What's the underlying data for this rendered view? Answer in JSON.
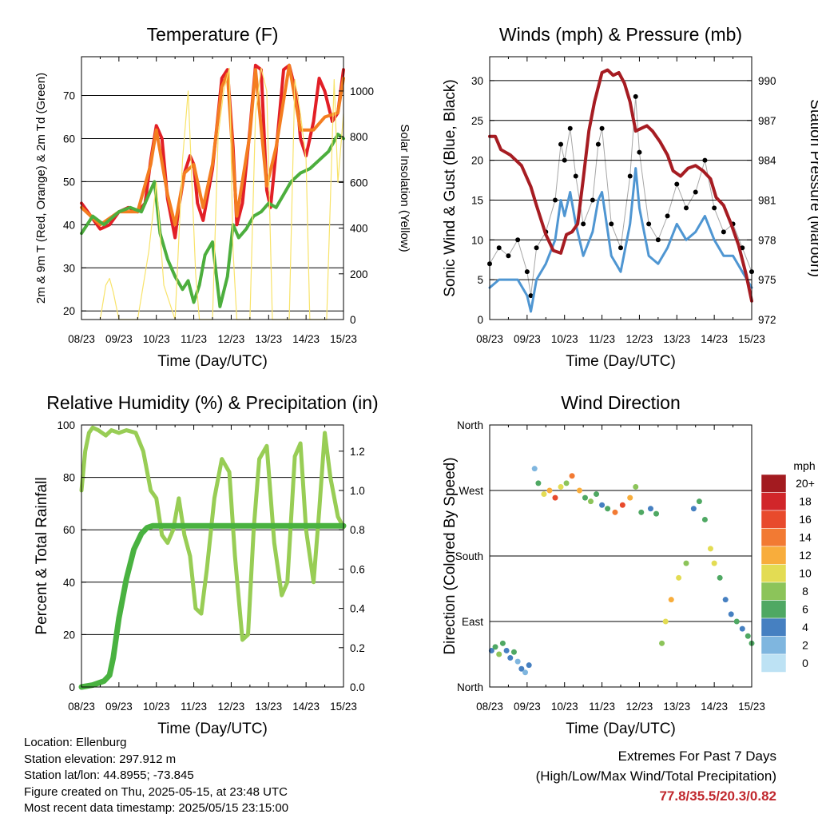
{
  "info": {
    "location": "Location: Ellenburg",
    "elevation": "Station elevation: 297.912 m",
    "latlon": "Station lat/lon: 44.8955; -73.845",
    "created": "Figure created on Thu, 2025-05-15, at 23:48 UTC",
    "recent": "Most recent data timestamp: 2025/05/15 23:15:00"
  },
  "extremes": {
    "title": "Extremes For Past 7 Days",
    "subtitle": "(High/Low/Max Wind/Total Precipitation)",
    "values": "77.8/35.5/20.3/0.82"
  },
  "colors": {
    "temp2m": "#e21f26",
    "temp9m": "#f47d20",
    "dewpoint": "#4cae3d",
    "solar": "#f8e36a",
    "gust": "#000000",
    "wind": "#4f96d2",
    "pressure": "#a61c22",
    "rh": "#98cd55",
    "precip": "#49b240"
  },
  "chart_data": [
    {
      "type": "line",
      "title": "Temperature (F)",
      "xlabel": "Time (Day/UTC)",
      "ylabel": "2m & 9m T (Red, Orange) & 2m Td (Green)",
      "ylabel_right": "Solar Insolation (Yellow)",
      "x_ticks": [
        "08/23",
        "09/23",
        "10/23",
        "11/23",
        "12/23",
        "13/23",
        "14/23",
        "15/23"
      ],
      "xlim": [
        0,
        7
      ],
      "ylim": [
        18,
        79
      ],
      "y_ticks": [
        20,
        30,
        40,
        50,
        60,
        70
      ],
      "ylim_right": [
        0,
        1150
      ],
      "y_ticks_right": [
        0,
        200,
        400,
        600,
        800,
        1000
      ],
      "grid": "horizontal",
      "series": [
        {
          "name": "2m T",
          "color": "#e21f26",
          "axis": "left",
          "x": [
            0,
            0.25,
            0.5,
            0.75,
            1,
            1.25,
            1.5,
            1.7,
            1.85,
            2.0,
            2.15,
            2.3,
            2.5,
            2.6,
            2.75,
            2.9,
            3.0,
            3.1,
            3.25,
            3.5,
            3.75,
            3.9,
            4.05,
            4.15,
            4.3,
            4.5,
            4.65,
            4.8,
            4.95,
            5.05,
            5.2,
            5.4,
            5.55,
            5.75,
            5.85,
            6.0,
            6.2,
            6.35,
            6.5,
            6.7,
            6.85,
            7.0
          ],
          "values": [
            45,
            42,
            39,
            40,
            43,
            44,
            43,
            45,
            55,
            63,
            60,
            46,
            37,
            44,
            52,
            56,
            54,
            45,
            41,
            53,
            74,
            76,
            58,
            40,
            45,
            62,
            77,
            76,
            48,
            44,
            57,
            76,
            77,
            70,
            60,
            56,
            64,
            74,
            71,
            64,
            66,
            76
          ]
        },
        {
          "name": "9m T",
          "color": "#f47d20",
          "axis": "left",
          "x": [
            0,
            0.5,
            1,
            1.5,
            1.85,
            2.0,
            2.3,
            2.5,
            2.75,
            3.0,
            3.25,
            3.5,
            3.75,
            3.9,
            4.15,
            4.5,
            4.65,
            4.95,
            5.2,
            5.55,
            5.85,
            6.2,
            6.5,
            6.85,
            7.0
          ],
          "values": [
            44,
            40,
            43,
            43,
            54,
            62,
            47,
            40,
            52,
            54,
            44,
            54,
            72,
            75,
            42,
            61,
            76,
            49,
            58,
            77,
            62,
            62,
            65,
            66,
            74
          ]
        },
        {
          "name": "2m Td",
          "color": "#4cae3d",
          "axis": "left",
          "x": [
            0,
            0.3,
            0.6,
            1,
            1.3,
            1.6,
            1.8,
            1.95,
            2.1,
            2.3,
            2.5,
            2.7,
            2.85,
            3.0,
            3.15,
            3.3,
            3.5,
            3.7,
            3.9,
            4.05,
            4.2,
            4.4,
            4.6,
            4.8,
            5.0,
            5.2,
            5.4,
            5.6,
            5.85,
            6.1,
            6.35,
            6.6,
            6.85,
            7.0
          ],
          "values": [
            38,
            42,
            40,
            43,
            44,
            43,
            47,
            50,
            38,
            32,
            28,
            25,
            27,
            22,
            26,
            33,
            36,
            21,
            28,
            40,
            37,
            39,
            42,
            43,
            45,
            44,
            47,
            50,
            52,
            53,
            55,
            57,
            61,
            60
          ]
        },
        {
          "name": "Solar Insolation",
          "color": "#f8e36a",
          "axis": "right",
          "x": [
            0.5,
            0.65,
            0.75,
            0.85,
            1.0,
            1.5,
            1.8,
            2.0,
            2.2,
            2.5,
            2.7,
            2.85,
            3.05,
            3.15,
            3.5,
            3.65,
            3.8,
            3.95,
            4.05,
            4.15,
            4.5,
            4.65,
            4.8,
            4.95,
            5.1,
            5.55,
            5.7,
            5.85,
            6.0,
            6.1,
            6.55,
            6.75,
            6.85,
            7.0
          ],
          "values": [
            0,
            150,
            180,
            120,
            0,
            0,
            300,
            600,
            150,
            0,
            700,
            1000,
            200,
            0,
            0,
            800,
            1000,
            1100,
            300,
            0,
            0,
            900,
            1100,
            1000,
            0,
            0,
            1050,
            900,
            700,
            0,
            0,
            1050,
            600,
            900
          ]
        }
      ]
    },
    {
      "type": "line",
      "title": "Winds (mph) & Pressure (mb)",
      "xlabel": "Time (Day/UTC)",
      "ylabel": "Sonic Wind & Gust (Blue, Black)",
      "ylabel_right": "Station Pressure (Maroon)",
      "x_ticks": [
        "08/23",
        "09/23",
        "10/23",
        "11/23",
        "12/23",
        "13/23",
        "14/23",
        "15/23"
      ],
      "xlim": [
        0,
        7
      ],
      "ylim": [
        0,
        33
      ],
      "y_ticks": [
        0,
        5,
        10,
        15,
        20,
        25,
        30
      ],
      "ylim_right": [
        972,
        991.8
      ],
      "y_ticks_right": [
        972,
        975,
        978,
        981,
        984,
        987,
        990
      ],
      "grid": "horizontal",
      "series": [
        {
          "name": "Gust",
          "color": "#000000",
          "axis": "left",
          "style": "points",
          "x": [
            0,
            0.25,
            0.5,
            0.75,
            1.0,
            1.1,
            1.25,
            1.5,
            1.75,
            1.9,
            2.0,
            2.15,
            2.3,
            2.5,
            2.75,
            2.9,
            3.0,
            3.25,
            3.5,
            3.75,
            3.9,
            4.0,
            4.25,
            4.5,
            4.75,
            5.0,
            5.25,
            5.5,
            5.75,
            6.0,
            6.25,
            6.5,
            6.75,
            7.0
          ],
          "values": [
            7,
            9,
            8,
            10,
            6,
            3,
            9,
            11,
            15,
            22,
            20,
            24,
            18,
            12,
            15,
            22,
            24,
            12,
            9,
            18,
            28,
            21,
            12,
            10,
            13,
            17,
            14,
            16,
            20,
            14,
            11,
            12,
            9,
            6
          ]
        },
        {
          "name": "Sonic Wind",
          "color": "#4f96d2",
          "axis": "left",
          "style": "line",
          "x": [
            0,
            0.25,
            0.5,
            0.75,
            1.0,
            1.1,
            1.25,
            1.5,
            1.75,
            1.9,
            2.0,
            2.15,
            2.3,
            2.5,
            2.75,
            2.9,
            3.0,
            3.25,
            3.5,
            3.75,
            3.9,
            4.0,
            4.25,
            4.5,
            4.75,
            5.0,
            5.25,
            5.5,
            5.75,
            6.0,
            6.25,
            6.5,
            6.75,
            7.0
          ],
          "values": [
            4,
            5,
            5,
            5,
            3,
            1,
            5,
            7,
            10,
            15,
            13,
            16,
            12,
            8,
            11,
            15,
            16,
            8,
            6,
            12,
            19,
            14,
            8,
            7,
            9,
            12,
            10,
            11,
            13,
            10,
            8,
            8,
            6,
            4
          ]
        },
        {
          "name": "Station Pressure",
          "color": "#a61c22",
          "axis": "right",
          "style": "line",
          "x": [
            0,
            0.15,
            0.3,
            0.55,
            0.85,
            1.1,
            1.25,
            1.5,
            1.7,
            1.9,
            2.05,
            2.2,
            2.35,
            2.5,
            2.65,
            2.8,
            3.0,
            3.15,
            3.3,
            3.45,
            3.6,
            3.75,
            3.9,
            4.05,
            4.2,
            4.35,
            4.55,
            4.75,
            4.9,
            5.1,
            5.3,
            5.5,
            5.7,
            5.9,
            6.05,
            6.25,
            6.45,
            6.65,
            6.85,
            7.0
          ],
          "values": [
            985.8,
            985.8,
            984.8,
            984.4,
            983.6,
            982.0,
            980.6,
            978.4,
            977.2,
            977.0,
            978.4,
            978.6,
            979.2,
            982.6,
            986.2,
            988.4,
            990.6,
            990.8,
            990.4,
            990.6,
            989.8,
            988.4,
            986.2,
            986.4,
            986.6,
            986.2,
            985.4,
            984.4,
            983.2,
            982.8,
            983.4,
            983.6,
            983.2,
            982.6,
            981.2,
            980.6,
            979.2,
            977.6,
            975.4,
            973.4
          ]
        }
      ]
    },
    {
      "type": "line",
      "title": "Relative Humidity (%) & Precipitation (in)",
      "xlabel": "Time (Day/UTC)",
      "ylabel": "Percent & Total Rainfall",
      "x_ticks": [
        "08/23",
        "09/23",
        "10/23",
        "11/23",
        "12/23",
        "13/23",
        "14/23",
        "15/23"
      ],
      "xlim": [
        0,
        7
      ],
      "ylim": [
        0,
        100
      ],
      "y_ticks": [
        0,
        20,
        40,
        60,
        80,
        100
      ],
      "ylim_right": [
        0,
        1.3333
      ],
      "y_ticks_right": [
        "0.0",
        "0.2",
        "0.4",
        "0.6",
        "0.8",
        "1.0",
        "1.2"
      ],
      "grid": "horizontal",
      "series": [
        {
          "name": "Relative Humidity",
          "color": "#98cd55",
          "axis": "left",
          "x": [
            0,
            0.1,
            0.2,
            0.3,
            0.45,
            0.65,
            0.8,
            1.0,
            1.2,
            1.45,
            1.65,
            1.85,
            2.0,
            2.15,
            2.3,
            2.45,
            2.6,
            2.75,
            2.9,
            3.05,
            3.2,
            3.35,
            3.55,
            3.75,
            3.95,
            4.1,
            4.3,
            4.45,
            4.6,
            4.75,
            4.95,
            5.15,
            5.35,
            5.5,
            5.7,
            5.85,
            6.0,
            6.2,
            6.35,
            6.5,
            6.65,
            6.85,
            7.0
          ],
          "values": [
            75,
            90,
            97,
            99,
            98,
            96,
            98,
            97,
            98,
            97,
            90,
            75,
            72,
            58,
            55,
            60,
            72,
            58,
            50,
            30,
            28,
            45,
            72,
            87,
            82,
            50,
            18,
            20,
            60,
            87,
            92,
            55,
            35,
            40,
            88,
            93,
            60,
            40,
            67,
            97,
            80,
            65,
            61
          ]
        },
        {
          "name": "Total Precipitation",
          "color": "#49b240",
          "axis": "right",
          "x": [
            0,
            0.3,
            0.6,
            0.75,
            0.85,
            1.0,
            1.2,
            1.4,
            1.6,
            1.75,
            1.9,
            2.0,
            2.5,
            3.0,
            3.5,
            4.0,
            4.5,
            5.0,
            5.5,
            6.0,
            6.5,
            7.0
          ],
          "values": [
            0,
            0.01,
            0.03,
            0.06,
            0.15,
            0.35,
            0.55,
            0.7,
            0.78,
            0.81,
            0.82,
            0.82,
            0.82,
            0.82,
            0.82,
            0.82,
            0.82,
            0.82,
            0.82,
            0.82,
            0.82,
            0.82
          ]
        }
      ]
    },
    {
      "type": "scatter",
      "title": "Wind Direction",
      "xlabel": "Time (Day/UTC)",
      "ylabel": "Direction (Colored By Speed)",
      "x_ticks": [
        "08/23",
        "09/23",
        "10/23",
        "11/23",
        "12/23",
        "13/23",
        "14/23",
        "15/23"
      ],
      "xlim": [
        0,
        7
      ],
      "ylim": [
        0,
        360
      ],
      "y_ticks": [
        {
          "v": 0,
          "label": "North"
        },
        {
          "v": 90,
          "label": "East"
        },
        {
          "v": 180,
          "label": "South"
        },
        {
          "v": 270,
          "label": "West"
        },
        {
          "v": 360,
          "label": "North"
        }
      ],
      "grid": "horizontal",
      "colorbar": {
        "label": "mph",
        "ticks": [
          "20+",
          "18",
          "16",
          "14",
          "12",
          "10",
          "8",
          "6",
          "4",
          "2",
          "0"
        ],
        "colors": [
          "#a31b20",
          "#d1262a",
          "#e84a2c",
          "#f27a33",
          "#f8ad3c",
          "#e3dc53",
          "#8cc45a",
          "#4fa863",
          "#4680c1",
          "#7fb6df",
          "#bde2f4"
        ]
      },
      "series": [
        {
          "name": "Wind Direction",
          "x": [
            0.05,
            0.15,
            0.25,
            0.35,
            0.45,
            0.55,
            0.65,
            0.75,
            0.85,
            0.95,
            1.05,
            1.2,
            1.3,
            1.45,
            1.6,
            1.75,
            1.9,
            2.05,
            2.2,
            2.4,
            2.55,
            2.7,
            2.85,
            3.0,
            3.15,
            3.35,
            3.55,
            3.75,
            3.9,
            4.05,
            4.3,
            4.45,
            4.6,
            4.7,
            4.85,
            5.05,
            5.25,
            5.45,
            5.6,
            5.75,
            5.9,
            6.0,
            6.15,
            6.3,
            6.45,
            6.6,
            6.75,
            6.9,
            7.0
          ],
          "values": [
            50,
            55,
            45,
            60,
            50,
            40,
            48,
            35,
            25,
            20,
            30,
            300,
            280,
            265,
            270,
            260,
            275,
            280,
            290,
            270,
            260,
            255,
            265,
            250,
            245,
            240,
            250,
            260,
            275,
            240,
            245,
            238,
            60,
            90,
            120,
            150,
            170,
            245,
            255,
            230,
            190,
            170,
            150,
            120,
            100,
            90,
            80,
            70,
            60
          ],
          "speed": [
            3,
            6,
            8,
            5,
            4,
            3,
            6,
            2,
            3,
            2,
            4,
            2,
            6,
            9,
            12,
            15,
            10,
            8,
            14,
            11,
            6,
            8,
            5,
            3,
            6,
            14,
            16,
            12,
            8,
            6,
            4,
            5,
            8,
            10,
            12,
            10,
            8,
            4,
            5,
            6,
            9,
            10,
            6,
            4,
            3,
            5,
            4,
            6,
            5
          ]
        }
      ]
    }
  ]
}
